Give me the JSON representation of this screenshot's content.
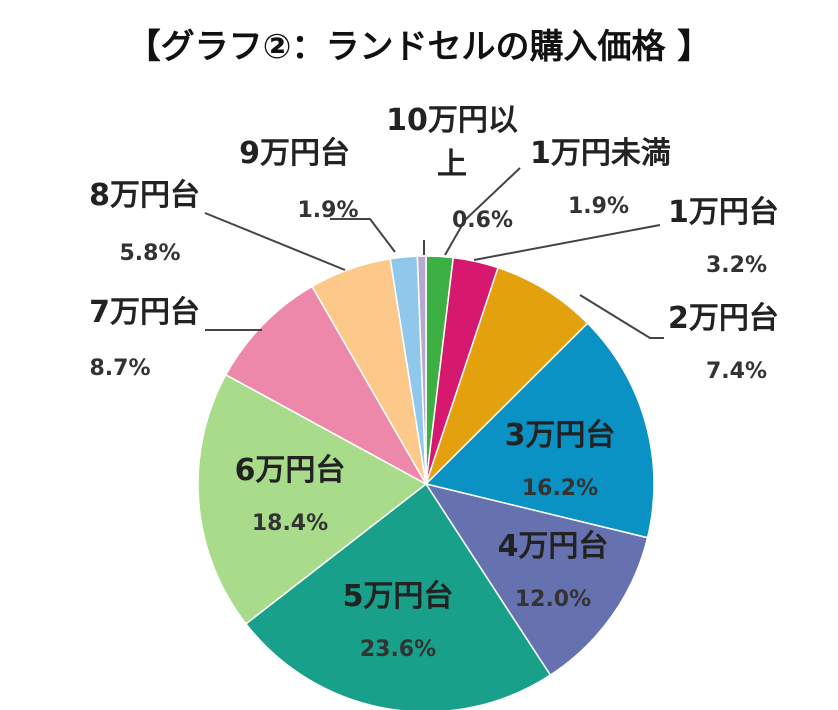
{
  "chart_data": {
    "type": "pie",
    "title": "【グラフ②：ランドセルの購入価格 】",
    "slices": [
      {
        "label": "1万円未満",
        "value": 1.9,
        "display": "1.9%",
        "color": "#3cb043"
      },
      {
        "label": "1万円台",
        "value": 3.2,
        "display": "3.2%",
        "color": "#d6186f"
      },
      {
        "label": "2万円台",
        "value": 7.4,
        "display": "7.4%",
        "color": "#e4a10e"
      },
      {
        "label": "3万円台",
        "value": 16.2,
        "display": "16.2%",
        "color": "#0b92c4"
      },
      {
        "label": "4万円台",
        "value": 12.0,
        "display": "12.0%",
        "color": "#6672b0"
      },
      {
        "label": "5万円台",
        "value": 23.6,
        "display": "23.6%",
        "color": "#18a08a"
      },
      {
        "label": "6万円台",
        "value": 18.4,
        "display": "18.4%",
        "color": "#a8dc8a"
      },
      {
        "label": "7万円台",
        "value": 8.7,
        "display": "8.7%",
        "color": "#ee88aa"
      },
      {
        "label": "8万円台",
        "value": 5.8,
        "display": "5.8%",
        "color": "#fcc98a"
      },
      {
        "label": "9万円台",
        "value": 1.9,
        "display": "1.9%",
        "color": "#90c8ec"
      },
      {
        "label": "10万円以上",
        "label_lines": [
          "10万円以",
          "上"
        ],
        "value": 0.6,
        "display": "0.6%",
        "color": "#b8a8d0"
      }
    ],
    "legend": "none",
    "start_angle": "top, clockwise"
  }
}
